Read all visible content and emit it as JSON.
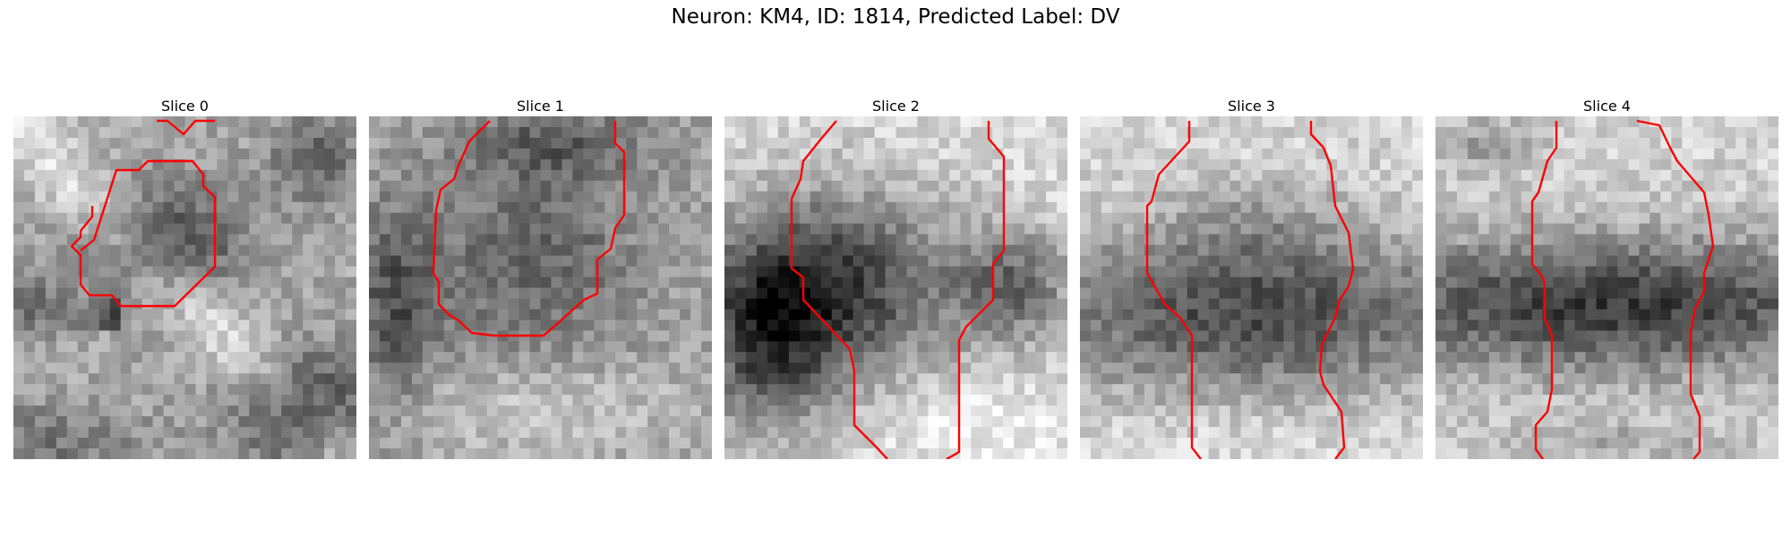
{
  "figure": {
    "title": "Neuron: KM4, ID: 1814, Predicted Label: DV"
  },
  "panels": [
    {
      "title": "Slice 0"
    },
    {
      "title": "Slice 1"
    },
    {
      "title": "Slice 2"
    },
    {
      "title": "Slice 3"
    },
    {
      "title": "Slice 4"
    }
  ],
  "colors": {
    "contour": "#ff0000",
    "background": "#ffffff"
  }
}
